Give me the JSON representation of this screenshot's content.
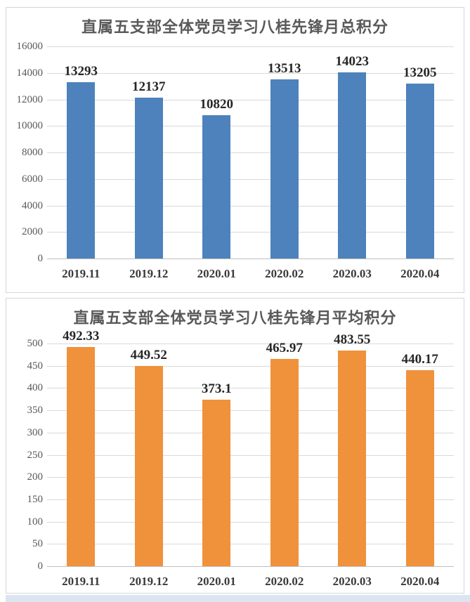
{
  "page": {
    "bottom_strip_color": "#dbe5f1"
  },
  "chart_data": [
    {
      "type": "bar",
      "title": "直属五支部全体党员学习八桂先锋月总积分",
      "categories": [
        "2019.11",
        "2019.12",
        "2020.01",
        "2020.02",
        "2020.03",
        "2020.04"
      ],
      "values": [
        13293,
        12137,
        10820,
        13513,
        14023,
        13205
      ],
      "data_labels": [
        "13293",
        "12137",
        "10820",
        "13513",
        "14023",
        "13205"
      ],
      "xlabel": "",
      "ylabel": "",
      "ylim": [
        0,
        16000
      ],
      "y_tick_step": 2000,
      "y_tick_labels": [
        "0",
        "2000",
        "4000",
        "6000",
        "8000",
        "10000",
        "12000",
        "14000",
        "16000"
      ],
      "grid": true,
      "legend": "none",
      "bar_color": "#4d82bc"
    },
    {
      "type": "bar",
      "title": "直属五支部全体党员学习八桂先锋月平均积分",
      "categories": [
        "2019.11",
        "2019.12",
        "2020.01",
        "2020.02",
        "2020.03",
        "2020.04"
      ],
      "values": [
        492.33,
        449.52,
        373.1,
        465.97,
        483.55,
        440.17
      ],
      "data_labels": [
        "492.33",
        "449.52",
        "373.1",
        "465.97",
        "483.55",
        "440.17"
      ],
      "xlabel": "",
      "ylabel": "",
      "ylim": [
        0,
        500
      ],
      "y_tick_step": 50,
      "y_tick_labels": [
        "0",
        "50",
        "100",
        "150",
        "200",
        "250",
        "300",
        "350",
        "400",
        "450",
        "500"
      ],
      "grid": true,
      "legend": "none",
      "bar_color": "#f0913c"
    }
  ]
}
